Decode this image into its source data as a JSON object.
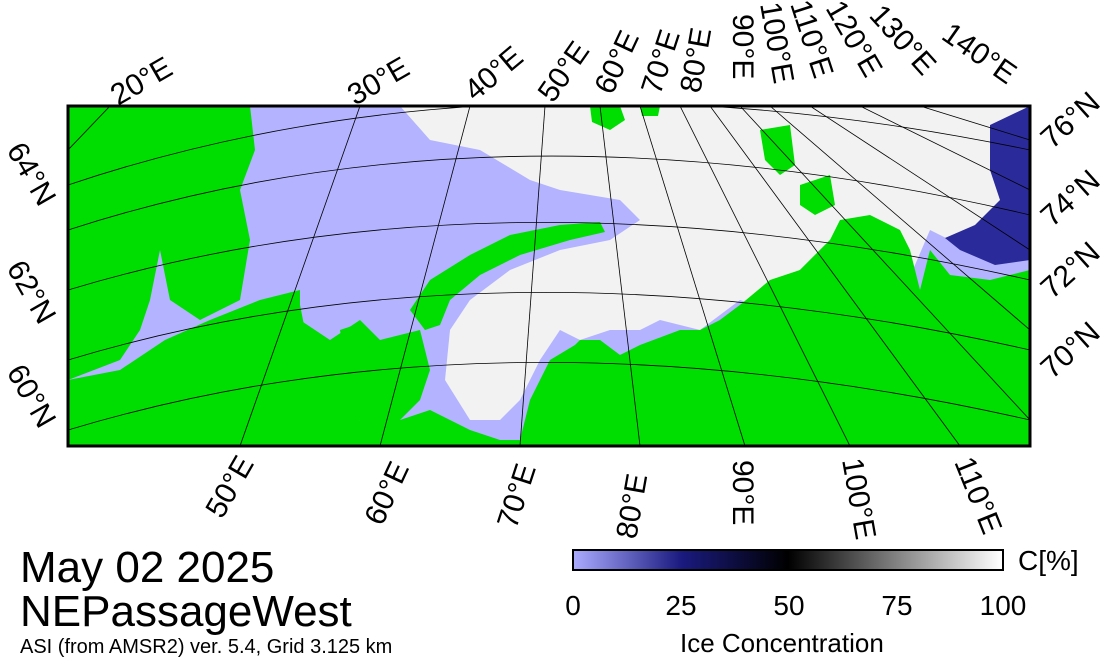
{
  "title_date": "May 02 2025",
  "region_name": "NEPassageWest",
  "product_info": "ASI (from AMSR2) ver. 5.4,  Grid 3.125 km",
  "colorbar": {
    "unit_label": "C[%]",
    "title": "Ice Concentration",
    "ticks": [
      "0",
      "25",
      "50",
      "75",
      "100"
    ],
    "gradient": [
      "#aaaaff",
      "#1a1a80",
      "#000000",
      "#808080",
      "#ffffff"
    ]
  },
  "map": {
    "colors": {
      "land": "#00dd00",
      "open_water": "#b3b3ff",
      "sea_ice": "#f2f2f2",
      "coast_gray": "#888888",
      "grid": "#000000"
    },
    "top_lon_labels": [
      "20°E",
      "30°E",
      "40°E",
      "50°E",
      "60°E",
      "70°E",
      "80°E",
      "90°E",
      "100°E",
      "110°E",
      "120°E",
      "130°E",
      "140°E"
    ],
    "bottom_lon_labels": [
      "50°E",
      "60°E",
      "70°E",
      "80°E",
      "90°E",
      "100°E",
      "110°E"
    ],
    "left_lat_labels": [
      "64°N",
      "62°N",
      "60°N"
    ],
    "right_lat_labels": [
      "76°N",
      "74°N",
      "72°N",
      "70°N"
    ]
  }
}
